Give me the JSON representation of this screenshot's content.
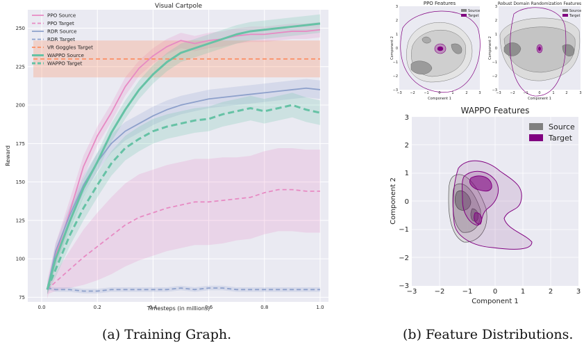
{
  "captions": {
    "a": "(a) Training Graph.",
    "b": "(b) Feature Distributions."
  },
  "chart_data": [
    {
      "type": "line",
      "title": "Visual Cartpole",
      "xlabel": "Timesteps (in millions)",
      "ylabel": "Reward",
      "xlim": [
        -0.05,
        1.03
      ],
      "ylim": [
        72,
        262
      ],
      "xticks": [
        "0.0",
        "0.2",
        "0.4",
        "0.6",
        "0.8",
        "1.0"
      ],
      "yticks": [
        "75",
        "100",
        "125",
        "150",
        "175",
        "200",
        "225",
        "250"
      ],
      "grid": true,
      "legend": "top-left",
      "background": "#eaeaf2",
      "x": [
        0.02,
        0.05,
        0.1,
        0.15,
        0.2,
        0.25,
        0.3,
        0.35,
        0.4,
        0.45,
        0.5,
        0.55,
        0.6,
        0.65,
        0.7,
        0.75,
        0.8,
        0.85,
        0.9,
        0.95,
        1.0
      ],
      "series": [
        {
          "name": "PPO Source",
          "color": "#e78ac3",
          "dash": false,
          "width": "normal",
          "values": [
            80,
            102,
            130,
            160,
            180,
            195,
            212,
            224,
            232,
            238,
            242,
            240,
            242,
            243,
            245,
            246,
            246,
            247,
            248,
            248,
            249
          ],
          "band": [
            6,
            8,
            8,
            7,
            6,
            6,
            6,
            5,
            5,
            5,
            5,
            5,
            5,
            5,
            5,
            5,
            5,
            5,
            5,
            5,
            5
          ]
        },
        {
          "name": "PPO Target",
          "color": "#e78ac3",
          "dash": true,
          "width": "normal",
          "values": [
            80,
            85,
            93,
            101,
            108,
            115,
            122,
            127,
            130,
            133,
            135,
            137,
            137,
            138,
            139,
            140,
            143,
            145,
            145,
            144,
            144
          ],
          "band": [
            3,
            6,
            12,
            18,
            22,
            25,
            27,
            28,
            28,
            28,
            28,
            28,
            28,
            28,
            27,
            27,
            27,
            27,
            27,
            27,
            27
          ]
        },
        {
          "name": "RDR Source",
          "color": "#8da0cb",
          "dash": false,
          "width": "normal",
          "values": [
            80,
            105,
            128,
            148,
            163,
            175,
            183,
            188,
            193,
            197,
            200,
            202,
            204,
            205,
            206,
            207,
            208,
            209,
            210,
            211,
            210
          ],
          "band": [
            3,
            5,
            6,
            6,
            6,
            6,
            6,
            6,
            6,
            6,
            6,
            6,
            6,
            6,
            6,
            6,
            6,
            6,
            6,
            6,
            6
          ]
        },
        {
          "name": "RDR Target",
          "color": "#8da0cb",
          "dash": true,
          "width": "normal",
          "values": [
            81,
            80,
            80,
            79,
            79,
            80,
            80,
            80,
            80,
            80,
            81,
            80,
            81,
            81,
            80,
            80,
            80,
            80,
            80,
            80,
            80
          ],
          "band": [
            1,
            1.5,
            1.5,
            1.5,
            1.5,
            1.5,
            1.5,
            1.5,
            1.5,
            1.5,
            1.5,
            1.5,
            1.5,
            1.5,
            1.5,
            1.5,
            1.5,
            1.5,
            1.5,
            1.5,
            1.5
          ]
        },
        {
          "name": "VR Goggles Target",
          "color": "#fc8d62",
          "dash": true,
          "width": "normal",
          "values": [
            230,
            230,
            230,
            230,
            230,
            230,
            230,
            230,
            230,
            230,
            230,
            230,
            230,
            230,
            230,
            230,
            230,
            230,
            230,
            230,
            230
          ],
          "band": [
            12,
            12,
            12,
            12,
            12,
            12,
            12,
            12,
            12,
            12,
            12,
            12,
            12,
            12,
            12,
            12,
            12,
            12,
            12,
            12,
            12
          ],
          "band_x": [
            -0.03,
            1.0
          ]
        },
        {
          "name": "WAPPO Source",
          "color": "#66c2a5",
          "dash": false,
          "width": "thick",
          "values": [
            80,
            100,
            124,
            146,
            163,
            182,
            197,
            210,
            220,
            228,
            234,
            237,
            240,
            243,
            246,
            248,
            249,
            250,
            251,
            252,
            253
          ],
          "band": [
            3,
            5,
            6,
            6,
            6,
            6,
            6,
            6,
            6,
            6,
            6,
            6,
            6,
            6,
            6,
            6,
            6,
            6,
            6,
            6,
            6
          ]
        },
        {
          "name": "WAPPO Target",
          "color": "#66c2a5",
          "dash": true,
          "width": "thick",
          "values": [
            80,
            93,
            115,
            133,
            148,
            162,
            172,
            178,
            183,
            186,
            188,
            190,
            191,
            194,
            196,
            198,
            196,
            198,
            200,
            197,
            195
          ],
          "band": [
            3,
            5,
            7,
            8,
            8,
            8,
            8,
            8,
            8,
            8,
            8,
            8,
            8,
            8,
            8,
            8,
            8,
            8,
            8,
            8,
            8
          ]
        }
      ]
    },
    {
      "type": "contour",
      "title": "PPO Features",
      "xlabel": "Component 1",
      "ylabel": "Component 2",
      "xticks": [
        "−3",
        "−2",
        "−1",
        "0",
        "1",
        "2",
        "3"
      ],
      "yticks": [
        "−3",
        "−2",
        "−1",
        "0",
        "1",
        "2",
        "3"
      ],
      "xlim": [
        -3,
        3
      ],
      "ylim": [
        -3,
        3
      ],
      "legend": [
        "Source",
        "Target"
      ],
      "colors": {
        "source": "#7f7f7f",
        "target": "#800080"
      }
    },
    {
      "type": "contour",
      "title": "Robust Domain Randomization Features",
      "xlabel": "Component 1",
      "ylabel": "Component 2",
      "xticks": [
        "−3",
        "−2",
        "−1",
        "0",
        "1",
        "2",
        "3"
      ],
      "yticks": [
        "−3",
        "−2",
        "−1",
        "0",
        "1",
        "2",
        "3"
      ],
      "xlim": [
        -3,
        3
      ],
      "ylim": [
        -3,
        3
      ],
      "legend": [
        "Source",
        "Target"
      ],
      "colors": {
        "source": "#7f7f7f",
        "target": "#800080"
      }
    },
    {
      "type": "contour",
      "title": "WAPPO Features",
      "xlabel": "Component 1",
      "ylabel": "Component 2",
      "xticks": [
        "−3",
        "−2",
        "−1",
        "0",
        "1",
        "2",
        "3"
      ],
      "yticks": [
        "−3",
        "−2",
        "−1",
        "0",
        "1",
        "2",
        "3"
      ],
      "xlim": [
        -3,
        3
      ],
      "ylim": [
        -3,
        3
      ],
      "legend": [
        "Source",
        "Target"
      ],
      "colors": {
        "source": "#7f7f7f",
        "target": "#800080"
      }
    }
  ]
}
